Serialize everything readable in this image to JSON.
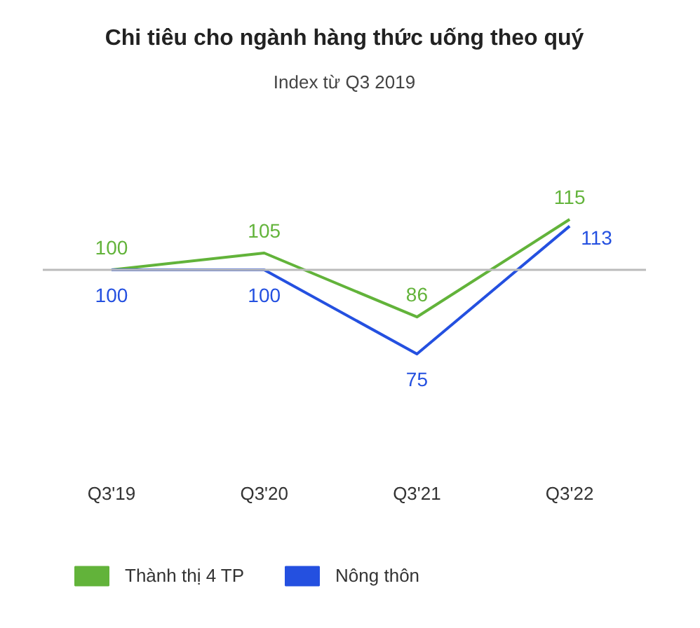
{
  "chart_data": {
    "type": "line",
    "title": "Chi tiêu cho ngành hàng thức uống theo quý",
    "subtitle": "Index từ Q3 2019",
    "categories": [
      "Q3'19",
      "Q3'20",
      "Q3'21",
      "Q3'22"
    ],
    "series": [
      {
        "name": "Thành thị 4 TP",
        "color": "#62b33a",
        "values": [
          100,
          105,
          86,
          115
        ]
      },
      {
        "name": "Nông thôn",
        "color": "#2450e0",
        "values": [
          100,
          100,
          75,
          113
        ]
      }
    ],
    "tick_labels": "x",
    "ref_lines": [
      {
        "axis": "y",
        "value": 100,
        "color": "#bbbbbb"
      }
    ],
    "data_labels": true,
    "legend": "bottom",
    "line_style": "solid"
  }
}
